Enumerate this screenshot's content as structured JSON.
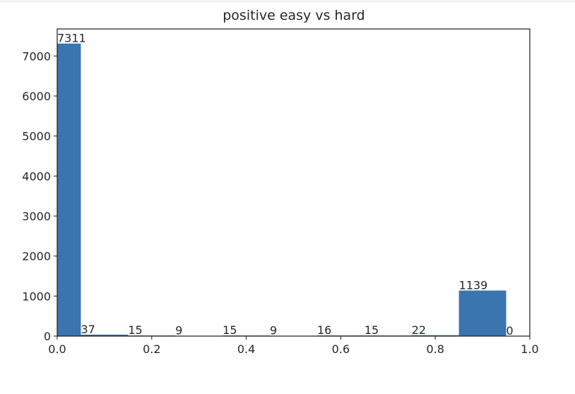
{
  "chart_data": {
    "type": "bar",
    "title": "positive easy vs hard",
    "xlabel": "",
    "ylabel": "",
    "xlim": [
      0.0,
      1.0
    ],
    "ylim": [
      0,
      7676
    ],
    "bar_color": "#3a75b0",
    "bins": [
      {
        "x0": 0.0,
        "x1": 0.05,
        "value": 7311,
        "label": "7311"
      },
      {
        "x0": 0.05,
        "x1": 0.15,
        "value": 37,
        "label": "37"
      },
      {
        "x0": 0.15,
        "x1": 0.25,
        "value": 15,
        "label": "15"
      },
      {
        "x0": 0.25,
        "x1": 0.35,
        "value": 9,
        "label": "9"
      },
      {
        "x0": 0.35,
        "x1": 0.45,
        "value": 15,
        "label": "15"
      },
      {
        "x0": 0.45,
        "x1": 0.55,
        "value": 9,
        "label": "9"
      },
      {
        "x0": 0.55,
        "x1": 0.65,
        "value": 16,
        "label": "16"
      },
      {
        "x0": 0.65,
        "x1": 0.75,
        "value": 15,
        "label": "15"
      },
      {
        "x0": 0.75,
        "x1": 0.85,
        "value": 22,
        "label": "22"
      },
      {
        "x0": 0.85,
        "x1": 0.95,
        "value": 1139,
        "label": "1139"
      },
      {
        "x0": 0.95,
        "x1": 1.05,
        "value": 0,
        "label": "0"
      }
    ],
    "x_ticks": [
      {
        "value": 0.0,
        "label": "0.0"
      },
      {
        "value": 0.2,
        "label": "0.2"
      },
      {
        "value": 0.4,
        "label": "0.4"
      },
      {
        "value": 0.6,
        "label": "0.6"
      },
      {
        "value": 0.8,
        "label": "0.8"
      },
      {
        "value": 1.0,
        "label": "1.0"
      }
    ],
    "y_ticks": [
      {
        "value": 0,
        "label": "0"
      },
      {
        "value": 1000,
        "label": "1000"
      },
      {
        "value": 2000,
        "label": "2000"
      },
      {
        "value": 3000,
        "label": "3000"
      },
      {
        "value": 4000,
        "label": "4000"
      },
      {
        "value": 5000,
        "label": "5000"
      },
      {
        "value": 6000,
        "label": "6000"
      },
      {
        "value": 7000,
        "label": "7000"
      }
    ],
    "grid": false,
    "legend": "none"
  }
}
